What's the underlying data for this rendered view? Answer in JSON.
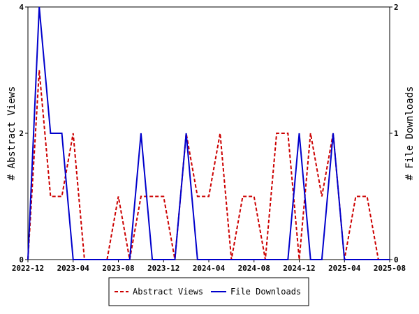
{
  "chart_data": {
    "type": "line",
    "x": [
      "2022-12",
      "2023-01",
      "2023-02",
      "2023-03",
      "2023-04",
      "2023-05",
      "2023-06",
      "2023-07",
      "2023-08",
      "2023-09",
      "2023-10",
      "2023-11",
      "2023-12",
      "2024-01",
      "2024-02",
      "2024-03",
      "2024-04",
      "2024-05",
      "2024-06",
      "2024-07",
      "2024-08",
      "2024-09",
      "2024-10",
      "2024-11",
      "2024-12",
      "2025-01",
      "2025-02",
      "2025-03",
      "2025-04",
      "2025-05",
      "2025-06",
      "2025-07",
      "2025-08"
    ],
    "x_ticks": [
      "2022-12",
      "2023-04",
      "2023-08",
      "2023-12",
      "2024-04",
      "2024-08",
      "2024-12",
      "2025-04",
      "2025-08"
    ],
    "series": [
      {
        "name": "Abstract Views",
        "axis": "left",
        "color": "#cc0000",
        "dash": "dashed",
        "values": [
          0,
          3,
          1,
          1,
          2,
          0,
          0,
          0,
          1,
          0,
          1,
          1,
          1,
          0,
          2,
          1,
          1,
          2,
          0,
          1,
          1,
          0,
          2,
          2,
          0,
          2,
          1,
          2,
          0,
          1,
          1,
          0,
          0
        ]
      },
      {
        "name": "File Downloads",
        "axis": "right",
        "color": "#0000cc",
        "dash": "solid",
        "values": [
          0,
          2,
          1,
          1,
          0,
          0,
          0,
          0,
          0,
          0,
          1,
          0,
          0,
          0,
          1,
          0,
          0,
          0,
          0,
          0,
          0,
          0,
          0,
          0,
          1,
          0,
          0,
          1,
          0,
          0,
          0,
          0,
          0
        ]
      }
    ],
    "ylabel_left": "# Abstract Views",
    "ylabel_right": "# File Downloads",
    "ylim_left": [
      0,
      4
    ],
    "ylim_right": [
      0,
      2
    ],
    "yticks_left": [
      "0",
      "2",
      "4"
    ],
    "yticks_right": [
      "0",
      "1",
      "2"
    ],
    "legend_position": "bottom-center",
    "grid": false
  }
}
